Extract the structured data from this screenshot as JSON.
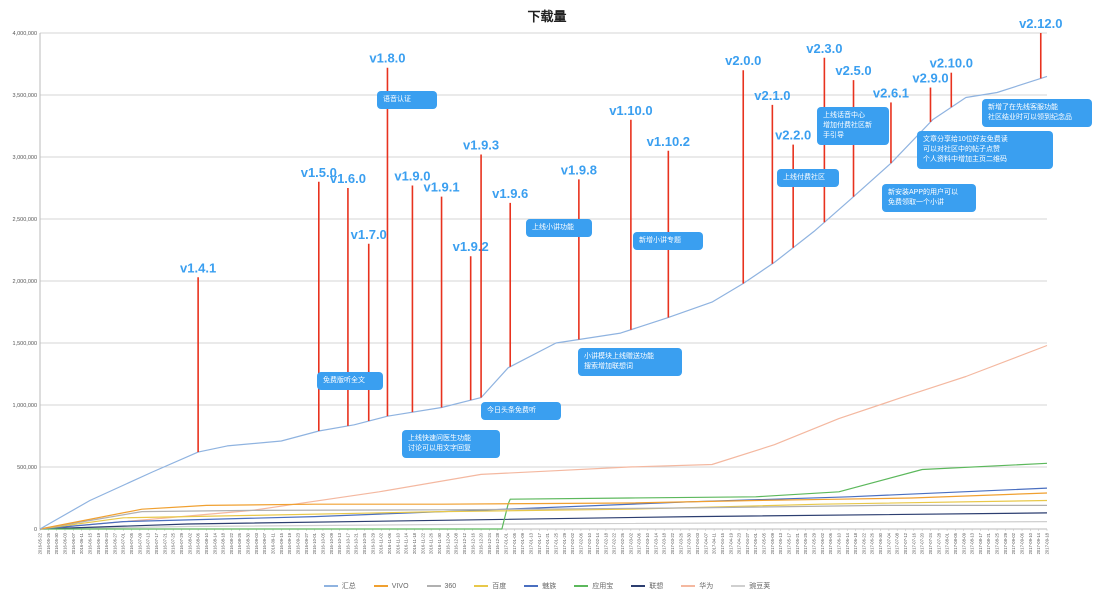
{
  "chart_data": {
    "type": "line",
    "title": "下载量",
    "ylim": [
      0,
      4000000
    ],
    "y_ticks": [
      "0",
      "500,000",
      "1,000,000",
      "1,500,000",
      "2,000,000",
      "2,500,000",
      "3,000,000",
      "3,500,000",
      "4,000,000"
    ],
    "y_tick_values": [
      0,
      500000,
      1000000,
      1500000,
      2000000,
      2500000,
      3000000,
      3500000,
      4000000
    ],
    "x_range": [
      "2016-05-22",
      "2017-09-18"
    ],
    "x_tick_step_days": 4,
    "grid": true,
    "legend_position": "bottom",
    "series": [
      {
        "name": "汇总",
        "color": "#8fb3e0",
        "points": [
          [
            "2016-05-22",
            0
          ],
          [
            "2016-06-15",
            230000
          ],
          [
            "2016-07-15",
            460000
          ],
          [
            "2016-08-06",
            620000
          ],
          [
            "2016-08-20",
            670000
          ],
          [
            "2016-09-15",
            710000
          ],
          [
            "2016-10-03",
            790000
          ],
          [
            "2016-10-20",
            840000
          ],
          [
            "2016-11-05",
            910000
          ],
          [
            "2016-12-01",
            980000
          ],
          [
            "2016-12-20",
            1060000
          ],
          [
            "2017-01-02",
            1300000
          ],
          [
            "2017-01-25",
            1500000
          ],
          [
            "2017-02-25",
            1580000
          ],
          [
            "2017-03-19",
            1700000
          ],
          [
            "2017-04-10",
            1830000
          ],
          [
            "2017-04-25",
            1980000
          ],
          [
            "2017-05-10",
            2150000
          ],
          [
            "2017-05-29",
            2400000
          ],
          [
            "2017-06-15",
            2650000
          ],
          [
            "2017-07-05",
            2950000
          ],
          [
            "2017-07-25",
            3300000
          ],
          [
            "2017-08-10",
            3480000
          ],
          [
            "2017-08-25",
            3520000
          ],
          [
            "2017-09-18",
            3650000
          ]
        ]
      },
      {
        "name": "VIVO",
        "color": "#f0a030",
        "points": [
          [
            "2016-05-22",
            0
          ],
          [
            "2016-07-10",
            160000
          ],
          [
            "2016-08-10",
            190000
          ],
          [
            "2016-10-01",
            200000
          ],
          [
            "2016-12-01",
            200000
          ],
          [
            "2017-03-01",
            210000
          ],
          [
            "2017-05-01",
            230000
          ],
          [
            "2017-06-10",
            240000
          ],
          [
            "2017-07-15",
            250000
          ],
          [
            "2017-09-18",
            290000
          ]
        ]
      },
      {
        "name": "360",
        "color": "#b0b0b0",
        "points": [
          [
            "2016-05-22",
            0
          ],
          [
            "2016-07-10",
            140000
          ],
          [
            "2016-09-01",
            150000
          ],
          [
            "2016-12-01",
            155000
          ],
          [
            "2017-04-01",
            170000
          ],
          [
            "2017-07-01",
            190000
          ],
          [
            "2017-09-18",
            190000
          ]
        ]
      },
      {
        "name": "百度",
        "color": "#e8c84a",
        "points": [
          [
            "2016-05-22",
            0
          ],
          [
            "2016-07-01",
            90000
          ],
          [
            "2016-09-01",
            110000
          ],
          [
            "2016-12-01",
            140000
          ],
          [
            "2017-03-01",
            160000
          ],
          [
            "2017-06-01",
            200000
          ],
          [
            "2017-09-18",
            230000
          ]
        ]
      },
      {
        "name": "魅族",
        "color": "#4a6fc0",
        "points": [
          [
            "2016-05-22",
            0
          ],
          [
            "2016-07-01",
            60000
          ],
          [
            "2016-10-01",
            100000
          ],
          [
            "2017-01-01",
            160000
          ],
          [
            "2017-04-01",
            220000
          ],
          [
            "2017-06-15",
            260000
          ],
          [
            "2017-09-18",
            330000
          ]
        ]
      },
      {
        "name": "应用宝",
        "color": "#5cb85c",
        "points": [
          [
            "2016-05-22",
            0
          ],
          [
            "2016-12-30",
            0
          ],
          [
            "2017-01-02",
            200000
          ],
          [
            "2017-01-03",
            240000
          ],
          [
            "2017-03-01",
            250000
          ],
          [
            "2017-05-01",
            260000
          ],
          [
            "2017-06-10",
            300000
          ],
          [
            "2017-07-20",
            480000
          ],
          [
            "2017-09-18",
            530000
          ]
        ]
      },
      {
        "name": "联想",
        "color": "#2c3e70",
        "points": [
          [
            "2016-05-22",
            0
          ],
          [
            "2016-08-01",
            40000
          ],
          [
            "2016-12-01",
            70000
          ],
          [
            "2017-04-01",
            100000
          ],
          [
            "2017-09-18",
            130000
          ]
        ]
      },
      {
        "name": "华为",
        "color": "#f4b8a0",
        "points": [
          [
            "2016-05-22",
            0
          ],
          [
            "2016-09-01",
            150000
          ],
          [
            "2016-11-01",
            300000
          ],
          [
            "2016-12-20",
            440000
          ],
          [
            "2017-01-25",
            470000
          ],
          [
            "2017-03-01",
            500000
          ],
          [
            "2017-04-10",
            520000
          ],
          [
            "2017-05-10",
            680000
          ],
          [
            "2017-06-10",
            890000
          ],
          [
            "2017-07-10",
            1060000
          ],
          [
            "2017-08-10",
            1230000
          ],
          [
            "2017-09-18",
            1480000
          ]
        ]
      },
      {
        "name": "豌豆荚",
        "color": "#cfcfcf",
        "points": [
          [
            "2016-05-22",
            0
          ],
          [
            "2016-08-01",
            20000
          ],
          [
            "2017-01-01",
            40000
          ],
          [
            "2017-09-18",
            60000
          ]
        ]
      }
    ],
    "annotations": [
      {
        "label": "v1.4.1",
        "date": "2016-08-06",
        "top": 2030000
      },
      {
        "label": "v1.5.0",
        "date": "2016-10-03",
        "top": 2800000
      },
      {
        "label": "v1.6.0",
        "date": "2016-10-17",
        "top": 2750000
      },
      {
        "label": "v1.7.0",
        "date": "2016-10-27",
        "top": 2300000
      },
      {
        "label": "v1.8.0",
        "date": "2016-11-05",
        "top": 3720000
      },
      {
        "label": "v1.9.0",
        "date": "2016-11-17",
        "top": 2770000
      },
      {
        "label": "v1.9.1",
        "date": "2016-12-01",
        "top": 2680000
      },
      {
        "label": "v1.9.2",
        "date": "2016-12-15",
        "top": 2200000
      },
      {
        "label": "v1.9.3",
        "date": "2016-12-20",
        "top": 3020000
      },
      {
        "label": "v1.9.6",
        "date": "2017-01-03",
        "top": 2630000
      },
      {
        "label": "v1.9.8",
        "date": "2017-02-05",
        "top": 2820000
      },
      {
        "label": "v1.10.0",
        "date": "2017-03-02",
        "top": 3300000
      },
      {
        "label": "v1.10.2",
        "date": "2017-03-20",
        "top": 3050000
      },
      {
        "label": "v2.0.0",
        "date": "2017-04-25",
        "top": 3700000
      },
      {
        "label": "v2.1.0",
        "date": "2017-05-09",
        "top": 3420000
      },
      {
        "label": "v2.2.0",
        "date": "2017-05-19",
        "top": 3100000
      },
      {
        "label": "v2.3.0",
        "date": "2017-06-03",
        "top": 3800000
      },
      {
        "label": "v2.5.0",
        "date": "2017-06-17",
        "top": 3620000
      },
      {
        "label": "v2.6.1",
        "date": "2017-07-05",
        "top": 3440000
      },
      {
        "label": "v2.9.0",
        "date": "2017-07-24",
        "top": 3560000
      },
      {
        "label": "v2.10.0",
        "date": "2017-08-03",
        "top": 3680000
      },
      {
        "label": "v2.12.0",
        "date": "2017-09-15",
        "top": 4000000
      }
    ],
    "notes": [
      {
        "text": "免费版听全文",
        "x": 317,
        "y": 372,
        "w": 66
      },
      {
        "text": "上线快速问医生功能<br>讨论可以用文字回复",
        "x": 402,
        "y": 430,
        "w": 98
      },
      {
        "text": "语音认证",
        "x": 377,
        "y": 91,
        "w": 60
      },
      {
        "text": "今日头条免费听",
        "x": 481,
        "y": 402,
        "w": 80
      },
      {
        "text": "上线小讲功能",
        "x": 526,
        "y": 219,
        "w": 66
      },
      {
        "text": "新增小讲专题",
        "x": 633,
        "y": 232,
        "w": 70
      },
      {
        "text": "小讲模块上线赠送功能<br>搜索增加联想词",
        "x": 578,
        "y": 348,
        "w": 104
      },
      {
        "text": "上线付费社区",
        "x": 777,
        "y": 169,
        "w": 62
      },
      {
        "text": "上线话音中心<br>增加付费社区新<br>手引导",
        "x": 817,
        "y": 107,
        "w": 72
      },
      {
        "text": "新安装APP的用户可以<br>免费领取一个小讲",
        "x": 882,
        "y": 184,
        "w": 94
      },
      {
        "text": "文章分享给10位好友免费读<br>可以对社区中的帖子点赞<br>个人资料中增加主页二维码",
        "x": 917,
        "y": 131,
        "w": 136
      },
      {
        "text": "新增了在先线客服功能<br>社区结业时可以领到纪念品",
        "x": 982,
        "y": 99,
        "w": 110
      }
    ]
  }
}
